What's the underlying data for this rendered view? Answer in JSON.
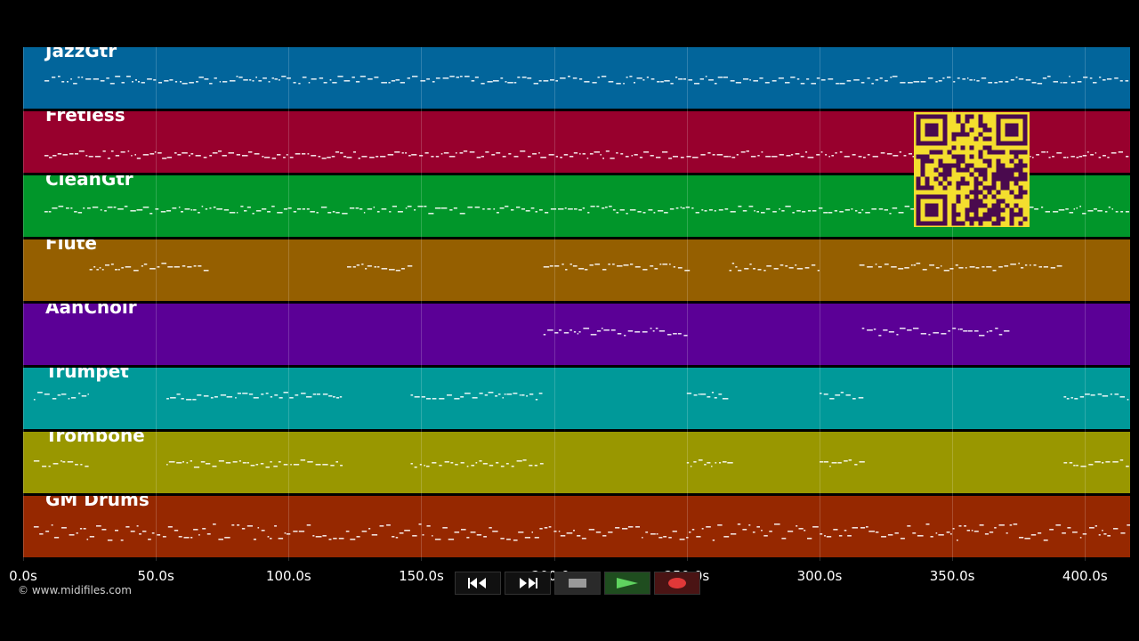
{
  "tracks": [
    {
      "name": "JazzGtr",
      "color": "#02659b"
    },
    {
      "name": "Fretless",
      "color": "#98002d"
    },
    {
      "name": "CleanGtr",
      "color": "#01962a"
    },
    {
      "name": "Flute",
      "color": "#955f00"
    },
    {
      "name": "AahChoir",
      "color": "#5b0096"
    },
    {
      "name": "Trumpet",
      "color": "#009999"
    },
    {
      "name": "Trombone",
      "color": "#999700"
    },
    {
      "name": "GM Drums",
      "color": "#962800"
    }
  ],
  "timeline": {
    "ticks": [
      "0.0s",
      "50.0s",
      "100.0s",
      "150.0s",
      "200.0s",
      "250.0s",
      "300.0s",
      "350.0s",
      "400.0s"
    ],
    "tick_values": [
      0,
      50,
      100,
      150,
      200,
      250,
      300,
      350,
      400
    ],
    "duration_seconds": 417
  },
  "copyright": "© www.midifiles.com",
  "transport": {
    "buttons": [
      {
        "name": "rewind-button",
        "icon": "rewind-icon",
        "bg": "#111111"
      },
      {
        "name": "fast-forward-button",
        "icon": "fast-forward-icon",
        "bg": "#111111"
      },
      {
        "name": "stop-button",
        "icon": "stop-icon",
        "bg": "#2a2a2a"
      },
      {
        "name": "play-button",
        "icon": "play-icon",
        "bg": "#1f4d1f"
      },
      {
        "name": "record-button",
        "icon": "record-icon",
        "bg": "#4a1414"
      }
    ]
  },
  "qr_code": {
    "icon": "qr-code-icon",
    "bg": "#f4de2e",
    "fg": "#4a0a4e"
  }
}
